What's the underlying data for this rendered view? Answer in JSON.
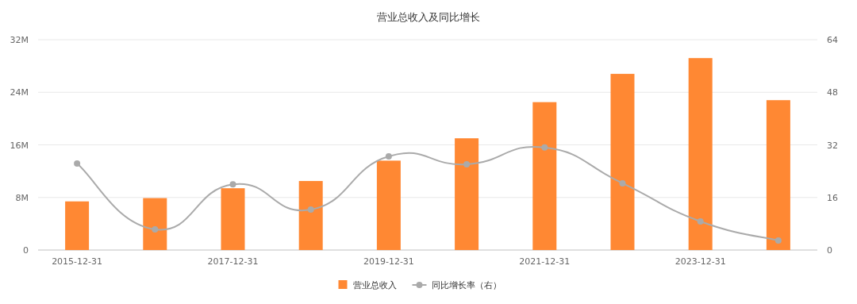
{
  "chart_data": {
    "type": "bar",
    "title": "营业总收入及同比增长",
    "categories": [
      "2015-12-31",
      null,
      "2017-12-31",
      null,
      "2019-12-31",
      null,
      "2021-12-31",
      null,
      "2023-12-31",
      null
    ],
    "series": [
      {
        "name": "营业总收入",
        "color": "#ff8833",
        "values": [
          7.4,
          7.9,
          9.4,
          10.5,
          13.6,
          17.0,
          22.5,
          26.8,
          29.2,
          22.8
        ]
      },
      {
        "name": "同比增长率（右）",
        "type": "line",
        "axis": "y2",
        "color": "#aaaaaa",
        "marker": "circle",
        "values": [
          26.3,
          6.3,
          20.0,
          12.3,
          28.5,
          26.1,
          31.2,
          20.3,
          8.7,
          2.9
        ]
      }
    ],
    "ylim": [
      0,
      32
    ],
    "yticks": [
      0,
      {
        "value": 8,
        "label": "8M"
      },
      {
        "value": 16,
        "label": "16M"
      },
      {
        "value": 24,
        "label": "24M"
      },
      {
        "value": 32,
        "label": "32M"
      }
    ],
    "y2lim": [
      0,
      64
    ],
    "y2ticks": [
      0,
      16,
      32,
      48,
      64
    ],
    "grid": "y",
    "legend": "bottom"
  }
}
